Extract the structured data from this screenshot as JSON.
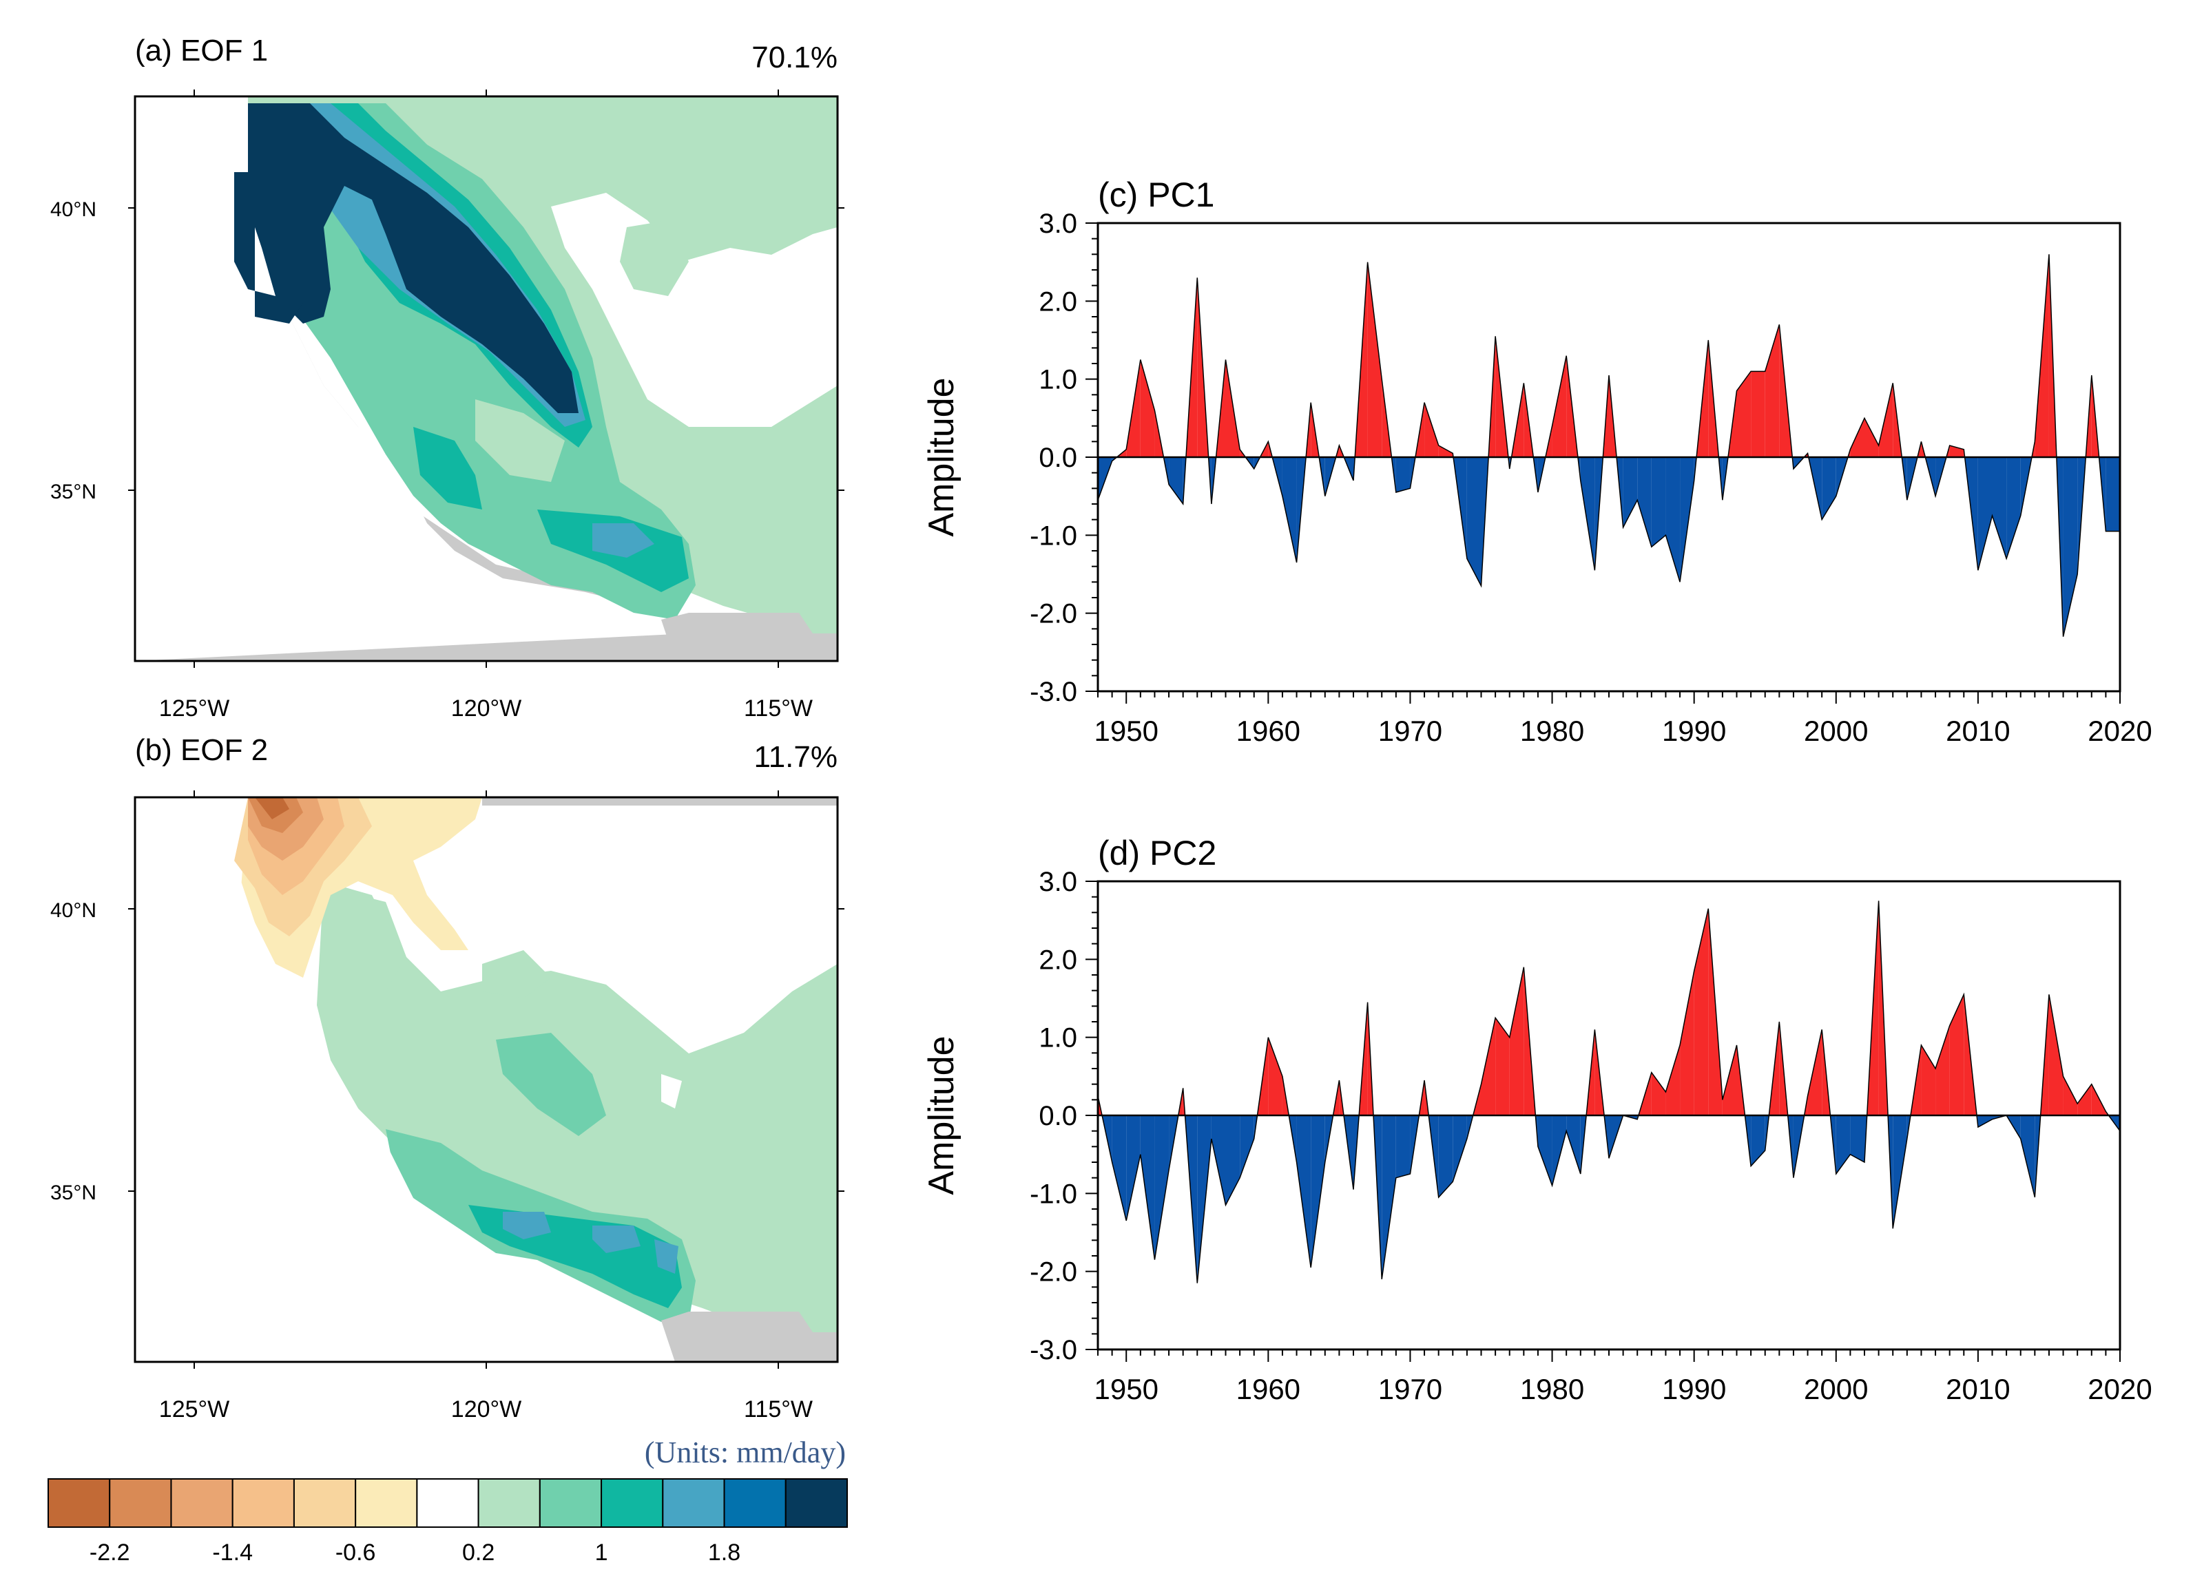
{
  "panels": {
    "a": {
      "label": "(a) EOF 1",
      "pct": "70.1%"
    },
    "b": {
      "label": "(b) EOF 2",
      "pct": "11.7%"
    }
  },
  "map_axes": {
    "lon_ticks": [
      "125°W",
      "120°W",
      "115°W"
    ],
    "lat_ticks": [
      "40°N",
      "35°N"
    ]
  },
  "colorbar": {
    "units": "(Units: mm/day)",
    "colors": [
      "#c26a36",
      "#d98a55",
      "#e9a572",
      "#f5c08a",
      "#f8d59e",
      "#fbebb8",
      "#ffffff",
      "#b3e2c2",
      "#70d0ad",
      "#10b7a1",
      "#47a5c4",
      "#0372ad",
      "#063a5c"
    ],
    "tick_labels": [
      "-2.2",
      "-1.4",
      "-0.6",
      "0.2",
      "1",
      "1.8"
    ]
  },
  "colors": {
    "positive": "#f62a2a",
    "negative": "#0a53aa",
    "land_gray": "#cacaca"
  },
  "chart_data": [
    {
      "type": "area",
      "title": "(c) PC1",
      "xlabel": "",
      "ylabel": "Amplitude",
      "xlim": [
        1948,
        2020
      ],
      "ylim": [
        -3.0,
        3.0
      ],
      "x_ticks": [
        "1950",
        "1960",
        "1970",
        "1980",
        "1990",
        "2000",
        "2010",
        "2020"
      ],
      "y_ticks": [
        "3.0",
        "2.0",
        "1.0",
        "0.0",
        "-1.0",
        "-2.0",
        "-3.0"
      ],
      "x": [
        1948,
        1949,
        1950,
        1951,
        1952,
        1953,
        1954,
        1955,
        1956,
        1957,
        1958,
        1959,
        1960,
        1961,
        1962,
        1963,
        1964,
        1965,
        1966,
        1967,
        1968,
        1969,
        1970,
        1971,
        1972,
        1973,
        1974,
        1975,
        1976,
        1977,
        1978,
        1979,
        1980,
        1981,
        1982,
        1983,
        1984,
        1985,
        1986,
        1987,
        1988,
        1989,
        1990,
        1991,
        1992,
        1993,
        1994,
        1995,
        1996,
        1997,
        1998,
        1999,
        2000,
        2001,
        2002,
        2003,
        2004,
        2005,
        2006,
        2007,
        2008,
        2009,
        2010,
        2011,
        2012,
        2013,
        2014,
        2015,
        2016,
        2017,
        2018,
        2019,
        2020
      ],
      "values": [
        -0.55,
        -0.05,
        0.1,
        1.25,
        0.6,
        -0.35,
        -0.6,
        2.3,
        -0.6,
        1.25,
        0.1,
        -0.15,
        0.2,
        -0.5,
        -1.35,
        0.7,
        -0.5,
        0.15,
        -0.3,
        2.5,
        1.0,
        -0.45,
        -0.4,
        0.7,
        0.15,
        0.05,
        -1.3,
        -1.65,
        1.55,
        -0.15,
        0.95,
        -0.45,
        0.4,
        1.3,
        -0.3,
        -1.45,
        1.05,
        -0.9,
        -0.55,
        -1.15,
        -1.0,
        -1.6,
        -0.3,
        1.5,
        -0.55,
        0.85,
        1.1,
        1.1,
        1.7,
        -0.15,
        0.05,
        -0.8,
        -0.5,
        0.1,
        0.5,
        0.15,
        0.95,
        -0.55,
        0.2,
        -0.5,
        0.15,
        0.1,
        -1.45,
        -0.75,
        -1.3,
        -0.75,
        0.2,
        2.6,
        -2.3,
        -1.5,
        1.05,
        -0.95,
        -0.95
      ]
    },
    {
      "type": "area",
      "title": "(d) PC2",
      "xlabel": "",
      "ylabel": "Amplitude",
      "xlim": [
        1948,
        2020
      ],
      "ylim": [
        -3.0,
        3.0
      ],
      "x_ticks": [
        "1950",
        "1960",
        "1970",
        "1980",
        "1990",
        "2000",
        "2010",
        "2020"
      ],
      "y_ticks": [
        "3.0",
        "2.0",
        "1.0",
        "0.0",
        "-1.0",
        "-2.0",
        "-3.0"
      ],
      "x": [
        1948,
        1949,
        1950,
        1951,
        1952,
        1953,
        1954,
        1955,
        1956,
        1957,
        1958,
        1959,
        1960,
        1961,
        1962,
        1963,
        1964,
        1965,
        1966,
        1967,
        1968,
        1969,
        1970,
        1971,
        1972,
        1973,
        1974,
        1975,
        1976,
        1977,
        1978,
        1979,
        1980,
        1981,
        1982,
        1983,
        1984,
        1985,
        1986,
        1987,
        1988,
        1989,
        1990,
        1991,
        1992,
        1993,
        1994,
        1995,
        1996,
        1997,
        1998,
        1999,
        2000,
        2001,
        2002,
        2003,
        2004,
        2005,
        2006,
        2007,
        2008,
        2009,
        2010,
        2011,
        2012,
        2013,
        2014,
        2015,
        2016,
        2017,
        2018,
        2019,
        2020
      ],
      "values": [
        0.25,
        -0.6,
        -1.35,
        -0.5,
        -1.85,
        -0.7,
        0.35,
        -2.15,
        -0.3,
        -1.15,
        -0.8,
        -0.3,
        1.0,
        0.5,
        -0.6,
        -1.95,
        -0.6,
        0.45,
        -0.95,
        1.45,
        -2.1,
        -0.8,
        -0.75,
        0.45,
        -1.05,
        -0.85,
        -0.3,
        0.4,
        1.25,
        1.0,
        1.9,
        -0.4,
        -0.9,
        -0.2,
        -0.75,
        1.1,
        -0.55,
        0.0,
        -0.05,
        0.55,
        0.3,
        0.9,
        1.85,
        2.65,
        0.2,
        0.9,
        -0.65,
        -0.45,
        1.2,
        -0.8,
        0.25,
        1.1,
        -0.75,
        -0.5,
        -0.6,
        2.75,
        -1.45,
        -0.3,
        0.9,
        0.6,
        1.15,
        1.55,
        -0.15,
        -0.05,
        0.0,
        -0.3,
        -1.05,
        1.55,
        0.5,
        0.15,
        0.4,
        0.05,
        -0.2
      ]
    }
  ]
}
